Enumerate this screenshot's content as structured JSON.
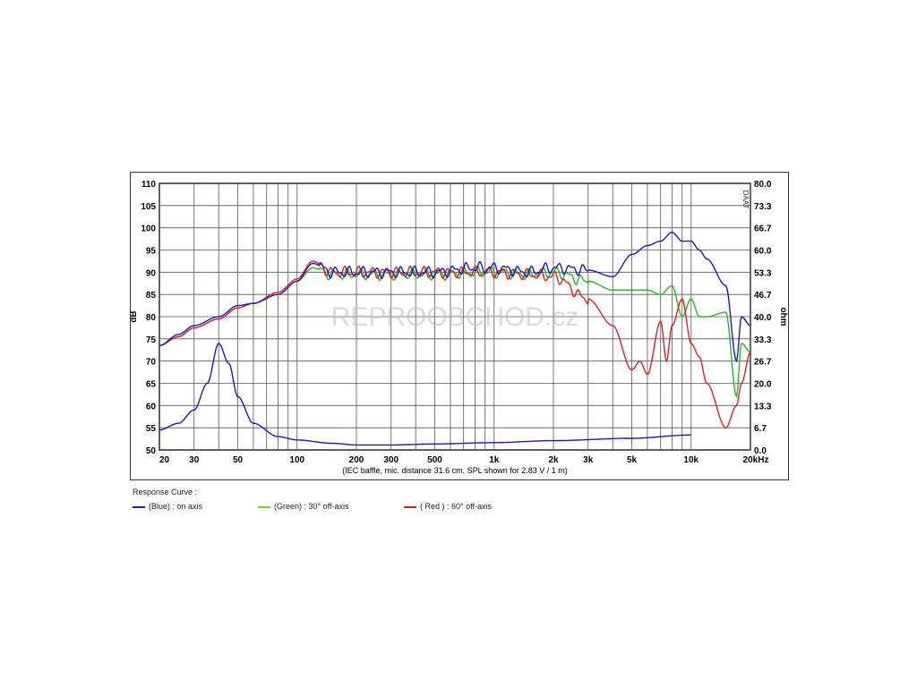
{
  "chart_data": {
    "type": "line",
    "xscale": "log",
    "xlim": [
      20,
      20000
    ],
    "ylim_left": [
      50,
      110
    ],
    "ylim_right": [
      0.0,
      80.0
    ],
    "ylabel_left": "dB",
    "ylabel_right": "ohm",
    "ylabel_right_top": "DAAT",
    "x_ticks": [
      {
        "v": 20,
        "l": "20"
      },
      {
        "v": 30,
        "l": "30"
      },
      {
        "v": 50,
        "l": "50"
      },
      {
        "v": 100,
        "l": "100"
      },
      {
        "v": 200,
        "l": "200"
      },
      {
        "v": 300,
        "l": "300"
      },
      {
        "v": 500,
        "l": "500"
      },
      {
        "v": 1000,
        "l": "1k"
      },
      {
        "v": 2000,
        "l": "2k"
      },
      {
        "v": 3000,
        "l": "3k"
      },
      {
        "v": 5000,
        "l": "5k"
      },
      {
        "v": 10000,
        "l": "10k"
      },
      {
        "v": 20000,
        "l": "20kHz"
      }
    ],
    "y_ticks_left": [
      "110",
      "105",
      "100",
      "95",
      "90",
      "85",
      "80",
      "75",
      "70",
      "65",
      "60",
      "55",
      "50"
    ],
    "y_ticks_right": [
      "80.0",
      "73.3",
      "66.7",
      "60.0",
      "53.3",
      "46.7",
      "40.0",
      "33.3",
      "26.7",
      "20.0",
      "13.3",
      "6.7",
      "0.0"
    ],
    "xlabel": "(IEC baffle, mic. distance 31.6 cm, SPL shown for 2.83 V / 1 m)",
    "grid": true,
    "series": [
      {
        "name": "(Blue)  : on axis",
        "color": "#1a1ac8",
        "axis": "left",
        "x": [
          20,
          25,
          30,
          40,
          50,
          60,
          80,
          100,
          120,
          150,
          200,
          300,
          500,
          800,
          1000,
          1500,
          2000,
          3000,
          4000,
          5000,
          6000,
          7000,
          8000,
          9000,
          10000,
          11000,
          12000,
          15000,
          17000,
          18000,
          20000
        ],
        "y": [
          73.5,
          76,
          78,
          80,
          82.5,
          83,
          85,
          88,
          92,
          90,
          90,
          90,
          90,
          91,
          91,
          90,
          91,
          90.5,
          89,
          94,
          96,
          97,
          99,
          97,
          97,
          95,
          93,
          87,
          70,
          80,
          78
        ]
      },
      {
        "name": "(Green) : 30° off-axis",
        "color": "#22bb22",
        "axis": "left",
        "x": [
          20,
          25,
          30,
          40,
          50,
          60,
          80,
          100,
          120,
          150,
          200,
          300,
          500,
          800,
          1000,
          1500,
          2000,
          3000,
          4000,
          5000,
          6000,
          7000,
          8000,
          9000,
          10000,
          11000,
          12000,
          15000,
          17000,
          18000,
          20000
        ],
        "y": [
          73.5,
          75.5,
          77.5,
          79.5,
          82,
          83,
          85,
          88,
          91,
          89.5,
          89.5,
          89.5,
          89.5,
          90,
          90,
          89.5,
          90,
          88,
          86,
          86,
          86,
          85,
          87,
          80,
          84,
          80,
          80,
          81,
          62,
          74,
          72
        ]
      },
      {
        "name": "( Red ) : 60° off-axis",
        "color": "#e02020",
        "axis": "left",
        "x": [
          20,
          25,
          30,
          40,
          50,
          60,
          80,
          100,
          120,
          150,
          200,
          300,
          500,
          800,
          1000,
          1500,
          2000,
          3000,
          4000,
          5000,
          5500,
          6000,
          7000,
          7500,
          8000,
          9000,
          10000,
          11000,
          12000,
          15000,
          17000,
          18000,
          20000
        ],
        "y": [
          73.5,
          75.5,
          77.5,
          79.5,
          82,
          83,
          85.5,
          88.5,
          92.5,
          90,
          90,
          90,
          90,
          90,
          90,
          89.5,
          89,
          84,
          78,
          68,
          70,
          67,
          79,
          70,
          78,
          84,
          74,
          71,
          65,
          55,
          60,
          65,
          72
        ]
      },
      {
        "name": "impedance",
        "color": "#1a1ac8",
        "axis": "right",
        "x": [
          20,
          25,
          30,
          35,
          40,
          45,
          50,
          60,
          80,
          100,
          150,
          200,
          300,
          500,
          1000,
          2000,
          5000,
          10000
        ],
        "y": [
          6,
          8,
          12,
          20,
          32,
          26,
          16,
          8,
          4,
          3,
          2,
          1.5,
          1.5,
          1.8,
          2.2,
          2.8,
          3.5,
          4.5
        ]
      }
    ]
  },
  "legend": {
    "title": "Response Curve :",
    "items": [
      {
        "label": "(Blue)  : on axis",
        "color": "#1a1ac8"
      },
      {
        "label": "(Green) : 30° off-axis",
        "color": "#7ccc22"
      },
      {
        "label": "( Red ) : 60° off-axis",
        "color": "#cc2020"
      }
    ]
  },
  "watermark": "REPROOBCHOD.cz"
}
